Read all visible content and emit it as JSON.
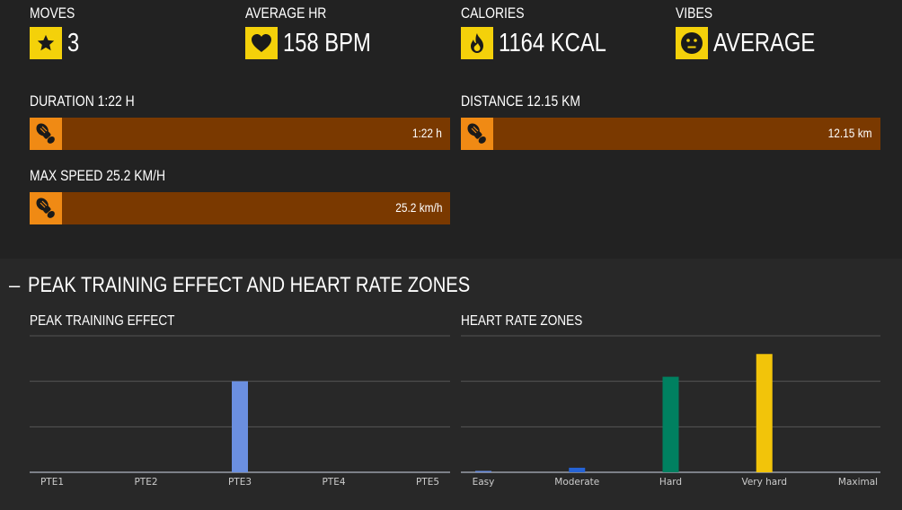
{
  "stats": [
    {
      "label": "MOVES",
      "value": "3",
      "icon": "star-icon"
    },
    {
      "label": "AVERAGE HR",
      "value": "158 BPM",
      "icon": "heart-icon"
    },
    {
      "label": "CALORIES",
      "value": "1164 KCAL",
      "icon": "flame-icon"
    },
    {
      "label": "VIBES",
      "value": "AVERAGE",
      "icon": "face-neutral-icon"
    }
  ],
  "metrics": [
    {
      "label": "DURATION 1:22 H",
      "value": "1:22 h",
      "icon": "shoe-icon"
    },
    {
      "label": "DISTANCE 12.15 KM",
      "value": "12.15 km",
      "icon": "shoe-icon"
    },
    {
      "label": "MAX SPEED 25.2 KM/H",
      "value": "25.2 km/h",
      "icon": "shoe-icon"
    }
  ],
  "section": {
    "toggle": "–",
    "title": "PEAK TRAINING EFFECT AND HEART RATE ZONES"
  },
  "colors": {
    "accent_yellow": "#f4d10a",
    "bar_orange": "#7a3900",
    "icon_orange": "#f08a14"
  },
  "chart_data": [
    {
      "type": "bar",
      "title": "PEAK TRAINING EFFECT",
      "categories": [
        "PTE1",
        "PTE2",
        "PTE3",
        "PTE4",
        "PTE5"
      ],
      "values": [
        0,
        0,
        1,
        0,
        0
      ],
      "colors": [
        "#6b8fe0",
        "#6b8fe0",
        "#6b8fe0",
        "#6b8fe0",
        "#6b8fe0"
      ],
      "ylim": [
        0,
        1.5
      ],
      "grid": true
    },
    {
      "type": "bar",
      "title": "HEART RATE ZONES",
      "categories": [
        "Easy",
        "Moderate",
        "Hard",
        "Very hard",
        "Maximal"
      ],
      "values": [
        0.5,
        2,
        42,
        52,
        0
      ],
      "colors": [
        "#6b8fe0",
        "#2563d6",
        "#008060",
        "#f2c40a",
        "#888888"
      ],
      "ylim": [
        0,
        60
      ],
      "grid": true
    }
  ]
}
